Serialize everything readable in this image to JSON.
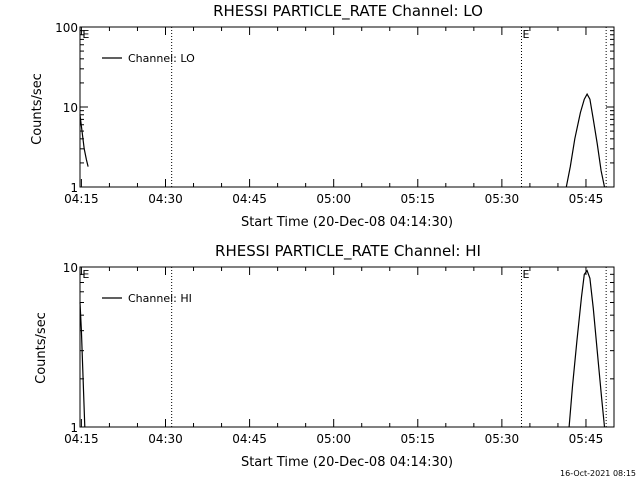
{
  "chart_data": [
    {
      "type": "line",
      "title": "RHESSI PARTICLE_RATE Channel: LO",
      "xlabel": "Start Time (20-Dec-08 04:14:30)",
      "ylabel": "Counts/sec",
      "y_scale": "log",
      "ylim": [
        1,
        100
      ],
      "y_ticks": [
        1,
        10,
        100
      ],
      "y_tick_labels": [
        "1",
        "10",
        "100"
      ],
      "xlim": [
        -0.25,
        95
      ],
      "x_ticks": [
        0,
        15,
        30,
        45,
        60,
        75,
        90
      ],
      "x_tick_labels": [
        "04:15",
        "04:30",
        "04:45",
        "05:00",
        "05:15",
        "05:30",
        "05:45"
      ],
      "legend": {
        "position": "top-left",
        "label": "Channel: LO"
      },
      "event_lines_min": [
        16.1,
        78.5,
        93.6
      ],
      "event_labels": [
        {
          "x": 0.0,
          "text": "E"
        },
        {
          "x": 78.5,
          "text": "E"
        }
      ],
      "series": [
        {
          "name": "Channel: LO",
          "segments": [
            {
              "x": [
                -0.25,
                0.1,
                0.5,
                0.9,
                1.2
              ],
              "y": [
                8.0,
                5.0,
                3.0,
                2.2,
                1.8
              ]
            },
            {
              "x": [
                86.5,
                87.2,
                88.0,
                89.0,
                89.7,
                90.2,
                90.7,
                91.3,
                92.0,
                92.7,
                93.3
              ],
              "y": [
                1.0,
                1.8,
                4.0,
                8.5,
                12.5,
                14.5,
                12.5,
                7.0,
                3.5,
                1.6,
                1.0
              ]
            }
          ]
        }
      ]
    },
    {
      "type": "line",
      "title": "RHESSI PARTICLE_RATE Channel: HI",
      "xlabel": "Start Time (20-Dec-08 04:14:30)",
      "ylabel": "Counts/sec",
      "y_scale": "log",
      "ylim": [
        1,
        10
      ],
      "y_ticks": [
        1,
        10
      ],
      "y_tick_labels": [
        "1",
        "10"
      ],
      "xlim": [
        -0.25,
        95
      ],
      "x_ticks": [
        0,
        15,
        30,
        45,
        60,
        75,
        90
      ],
      "x_tick_labels": [
        "04:15",
        "04:30",
        "04:45",
        "05:00",
        "05:15",
        "05:30",
        "05:45"
      ],
      "legend": {
        "position": "top-left",
        "label": "Channel: HI"
      },
      "event_lines_min": [
        16.1,
        78.5,
        93.6
      ],
      "event_labels": [
        {
          "x": 0.0,
          "text": "E"
        },
        {
          "x": 78.5,
          "text": "E"
        }
      ],
      "series": [
        {
          "name": "Channel: HI",
          "segments": [
            {
              "x": [
                -0.25,
                0.0,
                0.3,
                0.6
              ],
              "y": [
                6.0,
                4.0,
                2.0,
                1.0
              ]
            },
            {
              "x": [
                87.0,
                87.6,
                88.4,
                89.2,
                89.7,
                90.2,
                90.7,
                91.3,
                92.0,
                92.8,
                93.3
              ],
              "y": [
                1.0,
                1.8,
                3.5,
                6.5,
                9.0,
                9.5,
                8.5,
                5.5,
                3.0,
                1.5,
                1.0
              ]
            }
          ]
        }
      ]
    }
  ],
  "timestamp": "16-Oct-2021 08:15"
}
